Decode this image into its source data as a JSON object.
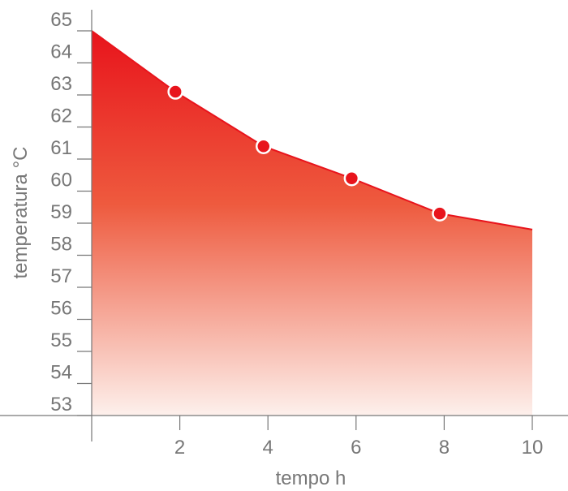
{
  "chart_data": {
    "type": "area",
    "title": "",
    "xlabel": "tempo h",
    "ylabel": "temperatura °C",
    "xlim": [
      0,
      10
    ],
    "ylim": [
      53,
      65
    ],
    "x_ticks": [
      2,
      4,
      6,
      8,
      10
    ],
    "y_ticks": [
      53,
      54,
      55,
      56,
      57,
      58,
      59,
      60,
      61,
      62,
      63,
      64,
      65
    ],
    "x_tick_labels": [
      "2",
      "4",
      "6",
      "8",
      "10"
    ],
    "y_tick_labels": [
      "53",
      "54",
      "55",
      "56",
      "57",
      "58",
      "59",
      "60",
      "61",
      "62",
      "63",
      "64",
      "65"
    ],
    "grid": false,
    "legend": "none",
    "series": [
      {
        "x": [
          0,
          1.9,
          3.9,
          5.9,
          7.9,
          10
        ],
        "values": [
          65,
          63.1,
          61.4,
          60.4,
          59.3,
          58.8
        ],
        "markers": [
          false,
          true,
          true,
          true,
          true,
          false
        ]
      }
    ],
    "colors": {
      "fill_top": "#e8141c",
      "fill_bottom": "#fdf0ec",
      "line": "#e8141c",
      "marker_fill": "#e8141c",
      "marker_stroke": "#ffffff",
      "axis": "#777777",
      "text": "#777777"
    }
  }
}
